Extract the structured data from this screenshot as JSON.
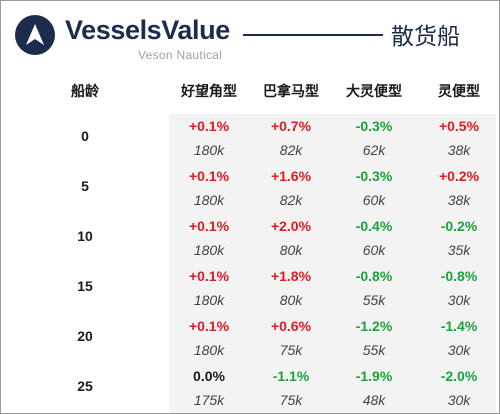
{
  "header": {
    "brand": "VesselsValue",
    "sub_brand": "Veson Nautical",
    "report_title": "散货船"
  },
  "table": {
    "age_header": "船龄",
    "columns": [
      "好望角型",
      "巴拿马型",
      "大灵便型",
      "灵便型"
    ],
    "rows": [
      {
        "age": "0",
        "cells": [
          {
            "change": "+0.1%",
            "value": "180k"
          },
          {
            "change": "+0.7%",
            "value": "82k"
          },
          {
            "change": "-0.3%",
            "value": "62k"
          },
          {
            "change": "+0.5%",
            "value": "38k"
          }
        ]
      },
      {
        "age": "5",
        "cells": [
          {
            "change": "+0.1%",
            "value": "180k"
          },
          {
            "change": "+1.6%",
            "value": "82k"
          },
          {
            "change": "-0.3%",
            "value": "60k"
          },
          {
            "change": "+0.2%",
            "value": "38k"
          }
        ]
      },
      {
        "age": "10",
        "cells": [
          {
            "change": "+0.1%",
            "value": "180k"
          },
          {
            "change": "+2.0%",
            "value": "80k"
          },
          {
            "change": "-0.4%",
            "value": "60k"
          },
          {
            "change": "-0.2%",
            "value": "35k"
          }
        ]
      },
      {
        "age": "15",
        "cells": [
          {
            "change": "+0.1%",
            "value": "180k"
          },
          {
            "change": "+1.8%",
            "value": "80k"
          },
          {
            "change": "-0.8%",
            "value": "55k"
          },
          {
            "change": "-0.8%",
            "value": "30k"
          }
        ]
      },
      {
        "age": "20",
        "cells": [
          {
            "change": "+0.1%",
            "value": "180k"
          },
          {
            "change": "+0.6%",
            "value": "75k"
          },
          {
            "change": "-1.2%",
            "value": "55k"
          },
          {
            "change": "-1.4%",
            "value": "30k"
          }
        ]
      },
      {
        "age": "25",
        "cells": [
          {
            "change": "0.0%",
            "value": "175k"
          },
          {
            "change": "-1.1%",
            "value": "75k"
          },
          {
            "change": "-1.9%",
            "value": "48k"
          },
          {
            "change": "-2.0%",
            "value": "30k"
          }
        ]
      }
    ]
  },
  "colors": {
    "positive": "#e01b24",
    "negative": "#1aa33c",
    "neutral": "#1a1a1a",
    "brand": "#1d2c4c"
  }
}
